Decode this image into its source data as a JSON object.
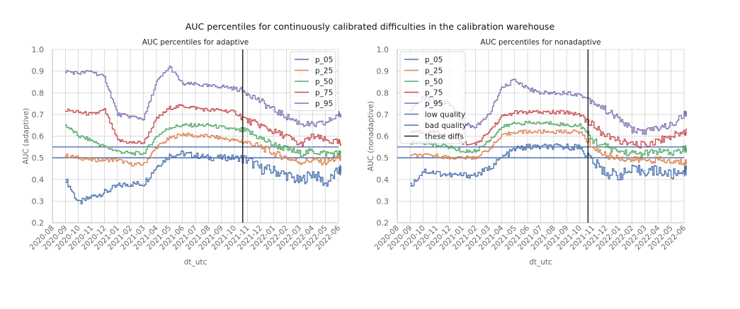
{
  "figure": {
    "title": "AUC percentiles for continuously calibrated difficulties in the calibration warehouse"
  },
  "colors": {
    "p_05": "#4c72b0",
    "p_25": "#dd8452",
    "p_50": "#55a868",
    "p_75": "#c44e52",
    "p_95": "#8172b3",
    "low_quality": "#4c72b0",
    "bad_quality": "#4c72b0",
    "these_diffs": "#222222",
    "grid": "#d0d0d0",
    "axis": "#bbbbbb",
    "tick_text": "#666666"
  },
  "chart_data": [
    {
      "type": "line",
      "title": "AUC percentiles for adaptive",
      "xlabel": "dt_utc",
      "ylabel": "AUC (adaptive)",
      "ylim": [
        0.2,
        1.0
      ],
      "xlim": [
        "2020-08",
        "2022-06"
      ],
      "grid": true,
      "legend_position": "top-right",
      "x_ticks": [
        "2020-08",
        "2020-09",
        "2020-10",
        "2020-11",
        "2020-12",
        "2021-01",
        "2021-02",
        "2021-03",
        "2021-04",
        "2021-05",
        "2021-06",
        "2021-07",
        "2021-08",
        "2021-09",
        "2021-10",
        "2021-11",
        "2021-12",
        "2022-01",
        "2022-02",
        "2022-03",
        "2022-04",
        "2022-05",
        "2022-06"
      ],
      "y_ticks": [
        "0.2",
        "0.3",
        "0.4",
        "0.5",
        "0.6",
        "0.7",
        "0.8",
        "0.9",
        "1.0"
      ],
      "x": [
        "2020-09",
        "2020-10",
        "2020-11",
        "2020-12",
        "2021-01",
        "2021-02",
        "2021-03",
        "2021-04",
        "2021-05",
        "2021-06",
        "2021-07",
        "2021-08",
        "2021-09",
        "2021-10",
        "2021-11",
        "2021-12",
        "2022-01",
        "2022-02",
        "2022-03",
        "2022-04",
        "2022-05",
        "2022-06"
      ],
      "series": [
        {
          "name": "p_05",
          "values": [
            0.4,
            0.29,
            0.32,
            0.34,
            0.37,
            0.38,
            0.38,
            0.46,
            0.51,
            0.52,
            0.51,
            0.5,
            0.5,
            0.5,
            0.49,
            0.45,
            0.44,
            0.42,
            0.39,
            0.43,
            0.38,
            0.44
          ]
        },
        {
          "name": "p_25",
          "values": [
            0.51,
            0.5,
            0.49,
            0.49,
            0.49,
            0.47,
            0.47,
            0.55,
            0.59,
            0.61,
            0.6,
            0.6,
            0.59,
            0.58,
            0.57,
            0.55,
            0.52,
            0.5,
            0.48,
            0.49,
            0.48,
            0.5
          ]
        },
        {
          "name": "p_50",
          "values": [
            0.65,
            0.6,
            0.58,
            0.55,
            0.53,
            0.52,
            0.52,
            0.6,
            0.64,
            0.65,
            0.65,
            0.65,
            0.64,
            0.63,
            0.62,
            0.59,
            0.56,
            0.54,
            0.52,
            0.53,
            0.52,
            0.52
          ]
        },
        {
          "name": "p_75",
          "values": [
            0.72,
            0.71,
            0.7,
            0.72,
            0.58,
            0.57,
            0.57,
            0.68,
            0.73,
            0.74,
            0.73,
            0.72,
            0.72,
            0.71,
            0.67,
            0.65,
            0.62,
            0.6,
            0.56,
            0.6,
            0.58,
            0.57
          ]
        },
        {
          "name": "p_95",
          "values": [
            0.9,
            0.89,
            0.9,
            0.87,
            0.7,
            0.69,
            0.68,
            0.85,
            0.92,
            0.84,
            0.84,
            0.83,
            0.83,
            0.82,
            0.8,
            0.76,
            0.72,
            0.69,
            0.66,
            0.65,
            0.66,
            0.7
          ]
        }
      ],
      "hlines": [
        {
          "name": "low quality",
          "y": 0.55
        },
        {
          "name": "bad quality",
          "y": 0.5
        }
      ],
      "vline": {
        "name": "these diffs",
        "x": "2021-10-20"
      },
      "legend": [
        "p_05",
        "p_25",
        "p_50",
        "p_75",
        "p_95"
      ]
    },
    {
      "type": "line",
      "title": "AUC percentiles for nonadaptive",
      "xlabel": "dt_utc",
      "ylabel": "AUC (nonadaptive)",
      "ylim": [
        0.2,
        1.0
      ],
      "xlim": [
        "2020-08",
        "2022-06"
      ],
      "grid": true,
      "legend_position": "top-left",
      "x_ticks": [
        "2020-08",
        "2020-09",
        "2020-10",
        "2020-11",
        "2020-12",
        "2021-01",
        "2021-02",
        "2021-03",
        "2021-04",
        "2021-05",
        "2021-06",
        "2021-07",
        "2021-08",
        "2021-09",
        "2021-10",
        "2021-11",
        "2021-12",
        "2022-01",
        "2022-02",
        "2022-03",
        "2022-04",
        "2022-05",
        "2022-06"
      ],
      "y_ticks": [
        "0.2",
        "0.3",
        "0.4",
        "0.5",
        "0.6",
        "0.7",
        "0.8",
        "0.9",
        "1.0"
      ],
      "x": [
        "2020-09",
        "2020-10",
        "2020-11",
        "2020-12",
        "2021-01",
        "2021-02",
        "2021-03",
        "2021-04",
        "2021-05",
        "2021-06",
        "2021-07",
        "2021-08",
        "2021-09",
        "2021-10",
        "2021-11",
        "2021-12",
        "2022-01",
        "2022-02",
        "2022-03",
        "2022-04",
        "2022-05",
        "2022-06"
      ],
      "series": [
        {
          "name": "p_05",
          "values": [
            0.37,
            0.44,
            0.43,
            0.42,
            0.42,
            0.42,
            0.45,
            0.5,
            0.54,
            0.55,
            0.55,
            0.55,
            0.55,
            0.55,
            0.48,
            0.43,
            0.42,
            0.44,
            0.44,
            0.44,
            0.42,
            0.44
          ]
        },
        {
          "name": "p_25",
          "values": [
            0.51,
            0.51,
            0.51,
            0.5,
            0.5,
            0.5,
            0.54,
            0.6,
            0.62,
            0.62,
            0.62,
            0.62,
            0.62,
            0.62,
            0.55,
            0.51,
            0.5,
            0.49,
            0.49,
            0.49,
            0.48,
            0.48
          ]
        },
        {
          "name": "p_50",
          "values": [
            0.57,
            0.57,
            0.56,
            0.55,
            0.53,
            0.53,
            0.58,
            0.64,
            0.66,
            0.66,
            0.66,
            0.66,
            0.65,
            0.65,
            0.58,
            0.55,
            0.53,
            0.52,
            0.52,
            0.53,
            0.52,
            0.54
          ]
        },
        {
          "name": "p_75",
          "values": [
            0.62,
            0.62,
            0.62,
            0.6,
            0.57,
            0.56,
            0.62,
            0.69,
            0.71,
            0.71,
            0.71,
            0.71,
            0.71,
            0.7,
            0.65,
            0.6,
            0.58,
            0.56,
            0.56,
            0.58,
            0.6,
            0.62
          ]
        },
        {
          "name": "p_95",
          "values": [
            0.72,
            0.78,
            0.76,
            0.75,
            0.66,
            0.64,
            0.7,
            0.82,
            0.86,
            0.82,
            0.8,
            0.8,
            0.8,
            0.79,
            0.76,
            0.72,
            0.68,
            0.63,
            0.62,
            0.64,
            0.65,
            0.7
          ]
        }
      ],
      "hlines": [
        {
          "name": "low quality",
          "y": 0.55
        },
        {
          "name": "bad quality",
          "y": 0.5
        }
      ],
      "vline": {
        "name": "these diffs",
        "x": "2021-10-20"
      },
      "legend": [
        "p_05",
        "p_25",
        "p_50",
        "p_75",
        "p_95",
        "low quality",
        "bad quality",
        "these diffs"
      ]
    }
  ]
}
